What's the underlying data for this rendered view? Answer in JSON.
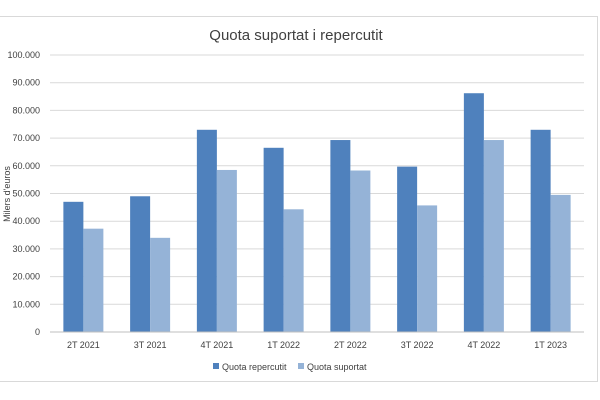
{
  "chart_data": {
    "type": "bar",
    "title": "Quota suportat i repercutit",
    "ylabel": "Milers d'euros",
    "xlabel": "",
    "categories": [
      "2T 2021",
      "3T 2021",
      "4T 2021",
      "1T 2022",
      "2T 2022",
      "3T 2022",
      "4T 2022",
      "1T 2023"
    ],
    "series": [
      {
        "name": "Quota repercutit",
        "color": "#4f81bd",
        "values": [
          47000,
          49000,
          73000,
          66500,
          69300,
          59700,
          86200,
          73000
        ]
      },
      {
        "name": "Quota suportat",
        "color": "#95b3d7",
        "values": [
          37300,
          34000,
          58500,
          44300,
          58300,
          45700,
          69300,
          49500
        ]
      }
    ],
    "ylim": [
      0,
      100000
    ],
    "yticks": [
      "0",
      "10.000",
      "20.000",
      "30.000",
      "40.000",
      "50.000",
      "60.000",
      "70.000",
      "80.000",
      "90.000",
      "100.000"
    ],
    "grid": true,
    "legend_position": "bottom"
  }
}
